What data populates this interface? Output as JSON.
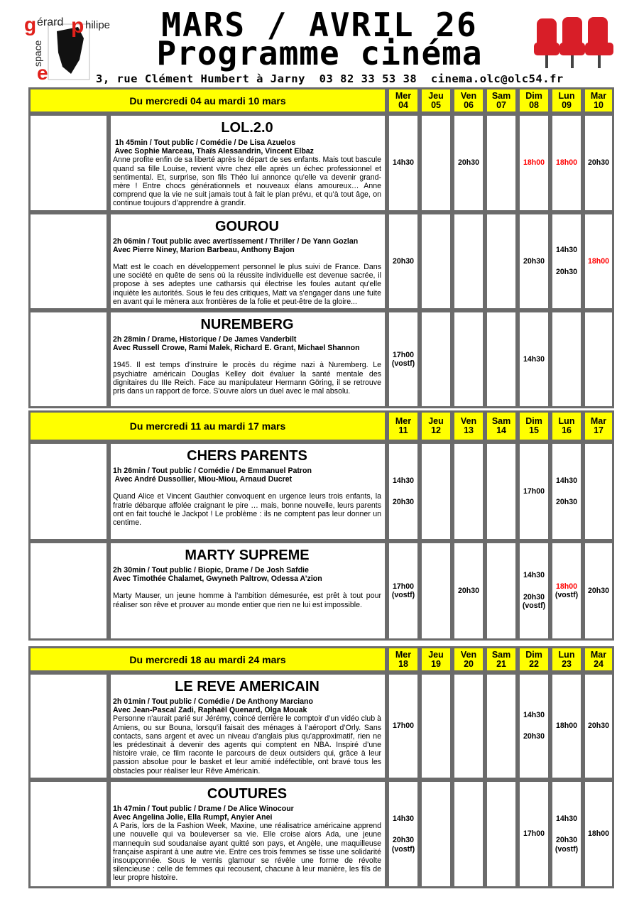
{
  "header": {
    "logo": {
      "text": "espace gérard philipe",
      "accent": "#e0201b"
    },
    "title_line1": "MARS / AVRIL 26",
    "title_line2": "Programme cinéma",
    "address": "3, rue Clément Humbert à Jarny  03 82 33 53 38  cinema.olc@olc54.fr",
    "seats_icon": "cinema-seats-icon"
  },
  "colors": {
    "header_bg": "#ffff00",
    "border": "#6b6b6b",
    "highlight_time": "#ff0000"
  },
  "weeks": [
    {
      "range": "Du mercredi 04 au mardi 10 mars",
      "days": [
        [
          "Mer",
          "04"
        ],
        [
          "Jeu",
          "05"
        ],
        [
          "Ven",
          "06"
        ],
        [
          "Sam",
          "07"
        ],
        [
          "Dim",
          "08"
        ],
        [
          "Lun",
          "09"
        ],
        [
          "Mar",
          "10"
        ]
      ],
      "films": [
        {
          "title": "LOL.2.0",
          "meta1": " 1h 45min / Tout public / Comédie / De Lisa Azuelos",
          "meta2": " Avec Sophie Marceau, Thaïs Alessandrin, Vincent Elbaz",
          "gap": false,
          "description": "Anne profite enfin de sa liberté après le départ de ses enfants. Mais tout bascule quand sa fille Louise, revient vivre chez elle après un échec professionnel et sentimental. Et, surprise, son fils Théo lui annonce qu’elle va devenir grand-mère ! Entre chocs générationnels et nouveaux élans amoureux… Anne comprend que la vie ne suit jamais tout à fait le plan prévu, et qu’à tout âge, on continue toujours d’apprendre à grandir.",
          "poster": [
            "#f4f0ec",
            "#e07aa8"
          ],
          "schedule": [
            [
              [
                {
                  "t": "14h30"
                }
              ]
            ],
            [],
            [
              [
                {
                  "t": "20h30"
                }
              ]
            ],
            [],
            [
              [
                {
                  "t": "18h00",
                  "red": true
                }
              ]
            ],
            [
              [
                {
                  "t": "18h00",
                  "red": true
                }
              ]
            ],
            [
              [
                {
                  "t": "20h30"
                }
              ]
            ]
          ]
        },
        {
          "title": "GOUROU",
          "meta1": "2h 06min / Tout public avec avertissement / Thriller / De Yann Gozlan",
          "meta2": "Avec Pierre Niney, Marion Barbeau, Anthony Bajon",
          "gap": true,
          "description": "Matt est le coach en développement personnel le plus suivi de France. Dans une société en quête de sens où la réussite individuelle est devenue sacrée, il propose à ses adeptes une catharsis qui électrise les foules autant qu'elle inquiète les autorités. Sous le feu des critiques, Matt va s'engager dans une fuite en avant qui le mènera aux frontières de la folie et peut-être de la gloire...",
          "poster": [
            "#3a2418",
            "#8a5a3a"
          ],
          "schedule": [
            [
              [
                {
                  "t": "20h30"
                }
              ]
            ],
            [],
            [],
            [],
            [
              [
                {
                  "t": "20h30"
                }
              ]
            ],
            [
              [
                {
                  "t": "14h30"
                }
              ],
              [
                {
                  "t": "20h30"
                }
              ]
            ],
            [
              [
                {
                  "t": "18h00",
                  "red": true
                }
              ]
            ]
          ]
        },
        {
          "title": "NUREMBERG",
          "meta1": "2h 28min / Drame, Historique / De James Vanderbilt",
          "meta2": "Avec Russell Crowe, Rami Malek, Richard E. Grant, Michael Shannon",
          "gap": true,
          "description": "1945. Il est temps d’instruire le procès du régime nazi à Nuremberg. Le psychiatre américain Douglas Kelley doit évaluer la santé mentale des dignitaires du IIIe Reich. Face au manipulateur Hermann Göring, il se retrouve pris dans un rapport de force. S'ouvre alors un duel avec le mal absolu.",
          "poster": [
            "#2a2a2a",
            "#5a6060"
          ],
          "schedule": [
            [
              [
                {
                  "t": "17h00"
                },
                {
                  "t": "(vostf)"
                }
              ]
            ],
            [],
            [],
            [],
            [
              [
                {
                  "t": "14h30"
                }
              ]
            ],
            [],
            []
          ]
        }
      ]
    },
    {
      "range": "Du mercredi 11 au mardi 17 mars",
      "days": [
        [
          "Mer",
          "11"
        ],
        [
          "Jeu",
          "12"
        ],
        [
          "Ven",
          "13"
        ],
        [
          "Sam",
          "14"
        ],
        [
          "Dim",
          "15"
        ],
        [
          "Lun",
          "16"
        ],
        [
          "Mar",
          "17"
        ]
      ],
      "films": [
        {
          "title": "CHERS PARENTS",
          "meta1": "1h 26min / Tout public / Comédie / De Emmanuel Patron",
          "meta2": " Avec André Dussollier, Miou-Miou, Arnaud Ducret",
          "gap": true,
          "description": "Quand Alice et Vincent Gauthier convoquent en urgence leurs trois enfants, la fratrie débarque affolée craignant le pire … mais, bonne nouvelle, leurs parents ont en fait touché le Jackpot ! Le problème : ils ne comptent pas leur donner un centime.",
          "poster": [
            "#c9b08a",
            "#3a3020"
          ],
          "schedule": [
            [
              [
                {
                  "t": "14h30"
                }
              ],
              [
                {
                  "t": "20h30"
                }
              ]
            ],
            [],
            [],
            [],
            [
              [
                {
                  "t": "17h00"
                }
              ]
            ],
            [
              [
                {
                  "t": "14h30"
                }
              ],
              [
                {
                  "t": "20h30"
                }
              ]
            ],
            []
          ]
        },
        {
          "title": "MARTY SUPREME",
          "meta1": "2h 30min / Tout public / Biopic, Drame / De Josh Safdie",
          "meta2": "Avec Timothée Chalamet, Gwyneth Paltrow, Odessa A’zion",
          "gap": true,
          "description": "Marty Mauser, un jeune homme à l’ambition démesurée, est prêt à tout pour réaliser son rêve et prouver au monde entier que rien ne lui est impossible.",
          "poster": [
            "#d8c8b0",
            "#6a4a38"
          ],
          "schedule": [
            [
              [
                {
                  "t": "17h00"
                },
                {
                  "t": "(vostf)"
                }
              ]
            ],
            [],
            [
              [
                {
                  "t": "20h30"
                }
              ]
            ],
            [],
            [
              [
                {
                  "t": "14h30"
                }
              ],
              [
                {
                  "t": "20h30"
                },
                {
                  "t": "(vostf)"
                }
              ]
            ],
            [
              [
                {
                  "t": "18h00",
                  "red": true
                },
                {
                  "t": "(vostf)"
                }
              ]
            ],
            [
              [
                {
                  "t": "20h30"
                }
              ]
            ]
          ]
        }
      ]
    },
    {
      "range": "Du mercredi 18  au mardi 24 mars",
      "days": [
        [
          "Mer",
          "18"
        ],
        [
          "Jeu",
          "19"
        ],
        [
          "Ven",
          "20"
        ],
        [
          "Sam",
          "21"
        ],
        [
          "Dim",
          "22"
        ],
        [
          "Lun",
          "23"
        ],
        [
          "Mar",
          "24"
        ]
      ],
      "films": [
        {
          "title": "LE REVE AMERICAIN",
          "meta1": "2h 01min / Tout public / Comédie / De Anthony Marciano",
          "meta2": "Avec Jean-Pascal Zadi, Raphaël Quenard, Olga Mouak",
          "gap": false,
          "description": "Personne n'aurait parié sur Jérémy, coincé derrière le comptoir d’un vidéo club à Amiens, ou sur Bouna, lorsqu'il faisait des ménages à l’aéroport d’Orly. Sans contacts, sans argent et avec un niveau d'anglais plus qu’approximatif, rien ne les prédestinait à devenir des agents qui comptent en NBA. Inspiré d’une histoire vraie, ce film raconte le parcours de deux outsiders qui, grâce à leur passion absolue pour le basket et leur amitié indéfectible, ont bravé tous les obstacles pour réaliser leur Rêve Américain.",
          "poster": [
            "#3a8ad0",
            "#d8a040"
          ],
          "schedule": [
            [
              [
                {
                  "t": "17h00"
                }
              ]
            ],
            [],
            [],
            [],
            [
              [
                {
                  "t": "14h30"
                }
              ],
              [
                {
                  "t": "20h30"
                }
              ]
            ],
            [
              [
                {
                  "t": "18h00"
                }
              ]
            ],
            [
              [
                {
                  "t": "20h30"
                }
              ]
            ]
          ]
        },
        {
          "title": "COUTURES",
          "meta1": "1h 47min / Tout public / Drame / De Alice Winocour",
          "meta2": "Avec Angelina Jolie, Ella Rumpf, Anyier Anei",
          "gap": false,
          "description": "A Paris, lors de la Fashion Week, Maxine, une réalisatrice américaine apprend une nouvelle qui va bouleverser sa vie. Elle croise alors Ada, une jeune mannequin sud soudanaise ayant quitté son pays, et Angèle, une maquilleuse française aspirant à une autre vie. Entre ces trois femmes se tisse une solidarité insoupçonnée. Sous le vernis glamour se révèle une forme de révolte silencieuse : celle de femmes qui recousent, chacune à leur manière, les fils de leur propre histoire.",
          "poster": [
            "#e8d8c8",
            "#b89078"
          ],
          "schedule": [
            [
              [
                {
                  "t": "14h30"
                }
              ],
              [
                {
                  "t": "20h30"
                },
                {
                  "t": "(vostf)"
                }
              ]
            ],
            [],
            [],
            [],
            [
              [
                {
                  "t": "17h00"
                }
              ]
            ],
            [
              [
                {
                  "t": "14h30"
                }
              ],
              [
                {
                  "t": "20h30"
                },
                {
                  "t": "(vostf)"
                }
              ]
            ],
            [
              [
                {
                  "t": "18h00"
                }
              ]
            ]
          ]
        }
      ]
    }
  ]
}
